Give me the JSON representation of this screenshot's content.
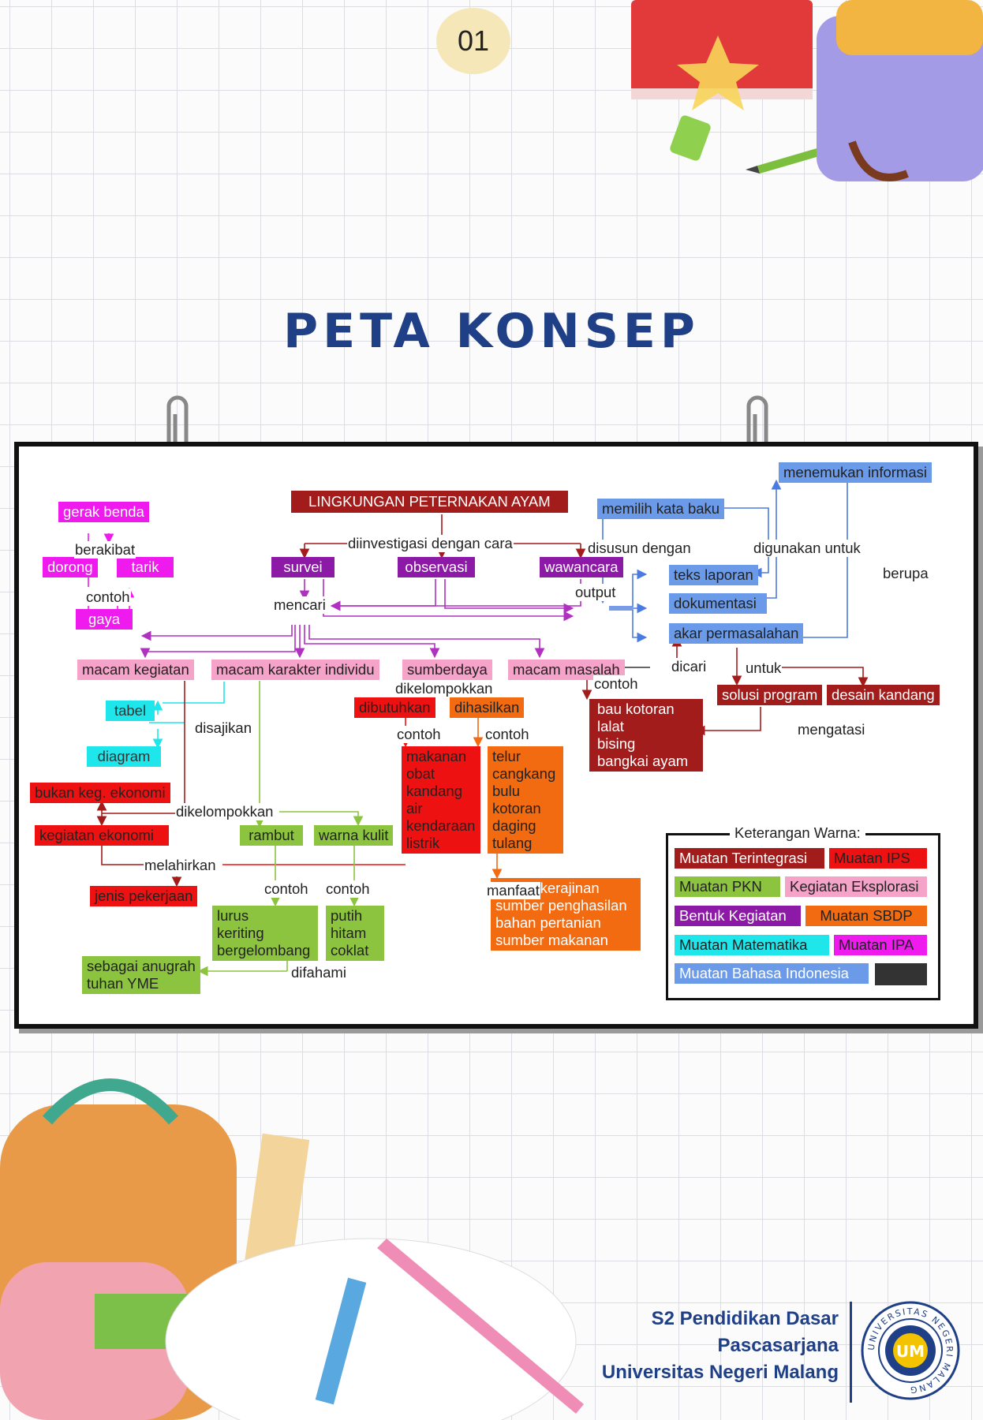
{
  "page_number": "01",
  "title": "PETA KONSEP",
  "nodes": {
    "root": {
      "text": "LINGKUNGAN PETERNAKAN AYAM",
      "color": "#a31c1c"
    },
    "survei": {
      "text": "survei",
      "color": "#8c1aa6"
    },
    "observasi": {
      "text": "observasi",
      "color": "#8c1aa6"
    },
    "wawancara": {
      "text": "wawancara",
      "color": "#8c1aa6"
    },
    "gerak_benda": {
      "text": "gerak benda",
      "color": "#ee1aee"
    },
    "dorong": {
      "text": "dorong",
      "color": "#ee1aee"
    },
    "tarik": {
      "text": "tarik",
      "color": "#ee1aee"
    },
    "gaya": {
      "text": "gaya",
      "color": "#ee1aee"
    },
    "macam_kegiatan": {
      "text": "macam kegiatan",
      "color": "#f5a3c8"
    },
    "macam_karakter": {
      "text": "macam karakter individu",
      "color": "#f5a3c8"
    },
    "sumberdaya": {
      "text": "sumberdaya",
      "color": "#f5a3c8"
    },
    "macam_masalah": {
      "text": "macam masalah",
      "color": "#f5a3c8"
    },
    "tabel": {
      "text": "tabel",
      "color": "#1ee6ea"
    },
    "diagram": {
      "text": "diagram",
      "color": "#1ee6ea"
    },
    "bukan_ekonomi": {
      "text": "bukan keg. ekonomi",
      "color": "#ee1111"
    },
    "kegiatan_ekonomi": {
      "text": "kegiatan ekonomi",
      "color": "#ee1111"
    },
    "jenis_pekerjaan": {
      "text": "jenis pekerjaan",
      "color": "#ee1111"
    },
    "rambut": {
      "text": "rambut",
      "color": "#8cc43f"
    },
    "warna_kulit": {
      "text": "warna kulit",
      "color": "#8cc43f"
    },
    "rambut_contoh": {
      "text": "lurus\nkeriting\nbergelombang",
      "color": "#8cc43f"
    },
    "kulit_contoh": {
      "text": "putih\nhitam\ncoklat",
      "color": "#8cc43f"
    },
    "anugrah": {
      "text": "sebagai anugrah\ntuhan YME",
      "color": "#8cc43f"
    },
    "dibutuhkan": {
      "text": "dibutuhkan",
      "color": "#ee1111"
    },
    "dihasilkan": {
      "text": "dihasilkan",
      "color": "#f26b11"
    },
    "butuh_list": {
      "text": "makanan\nobat\nkandang\nair\nkendaraan\nlistrik",
      "color": "#ee1111"
    },
    "hasil_list": {
      "text": "telur\ncangkang\nbulu\nkotoran\ndaging\ntulang",
      "color": "#f26b11"
    },
    "manfaat_list": {
      "text": "bahan kerajinan\nsumber penghasilan\nbahan pertanian\nsumber makanan",
      "color": "#f26b11"
    },
    "masalah_list": {
      "text": "bau kotoran\nlalat\nbising\nbangkai ayam",
      "color": "#a31c1c"
    },
    "menemukan": {
      "text": "menemukan informasi",
      "color": "#6b9be8"
    },
    "kata_baku": {
      "text": "memilih kata baku",
      "color": "#6b9be8"
    },
    "teks_laporan": {
      "text": "teks laporan",
      "color": "#6b9be8"
    },
    "dokumentasi": {
      "text": "dokumentasi",
      "color": "#6b9be8"
    },
    "akar": {
      "text": "akar permasalahan",
      "color": "#6b9be8"
    },
    "solusi": {
      "text": "solusi program",
      "color": "#a31c1c"
    },
    "desain": {
      "text": "desain kandang",
      "color": "#a31c1c"
    }
  },
  "labels": {
    "diinvestigasi": "diinvestigasi dengan cara",
    "berakibat": "berakibat",
    "contoh_gaya": "contoh",
    "mencari": "mencari",
    "output": "output",
    "disusun": "disusun dengan",
    "digunakan": "digunakan untuk",
    "berupa": "berupa",
    "dicari": "dicari",
    "untuk": "untuk",
    "dikelompokkan_sd": "dikelompokkan",
    "contoh_masalah": "contoh",
    "disajikan": "disajikan",
    "contoh_butuh": "contoh",
    "contoh_hasil": "contoh",
    "mengatasi": "mengatasi",
    "dikelompokkan_keg": "dikelompokkan",
    "melahirkan": "melahirkan",
    "contoh_rambut": "contoh",
    "contoh_kulit": "contoh",
    "manfaat": "manfaat",
    "difahami": "difahami"
  },
  "legend": {
    "title": "Keterangan Warna:",
    "items": [
      {
        "label": "Muatan Terintegrasi",
        "color": "#a31c1c"
      },
      {
        "label": "Muatan IPS",
        "color": "#ee1111"
      },
      {
        "label": "Muatan PKN",
        "color": "#8cc43f"
      },
      {
        "label": "Kegiatan Eksplorasi",
        "color": "#f5a3c8"
      },
      {
        "label": "Bentuk Kegiatan",
        "color": "#8c1aa6"
      },
      {
        "label": "Muatan SBDP",
        "color": "#f26b11"
      },
      {
        "label": "Muatan Matematika",
        "color": "#1ee6ea"
      },
      {
        "label": "Muatan IPA",
        "color": "#ee1aee"
      },
      {
        "label": "Muatan Bahasa Indonesia",
        "color": "#6b9be8"
      },
      {
        "label": "",
        "color": "#333333"
      }
    ]
  },
  "footer": {
    "line1": "S2 Pendidikan Dasar",
    "line2": "Pascasarjana",
    "line3": "Universitas Negeri Malang"
  },
  "seal_text": "UNIVERSITAS NEGERI MALANG",
  "seal_initials": "UM"
}
